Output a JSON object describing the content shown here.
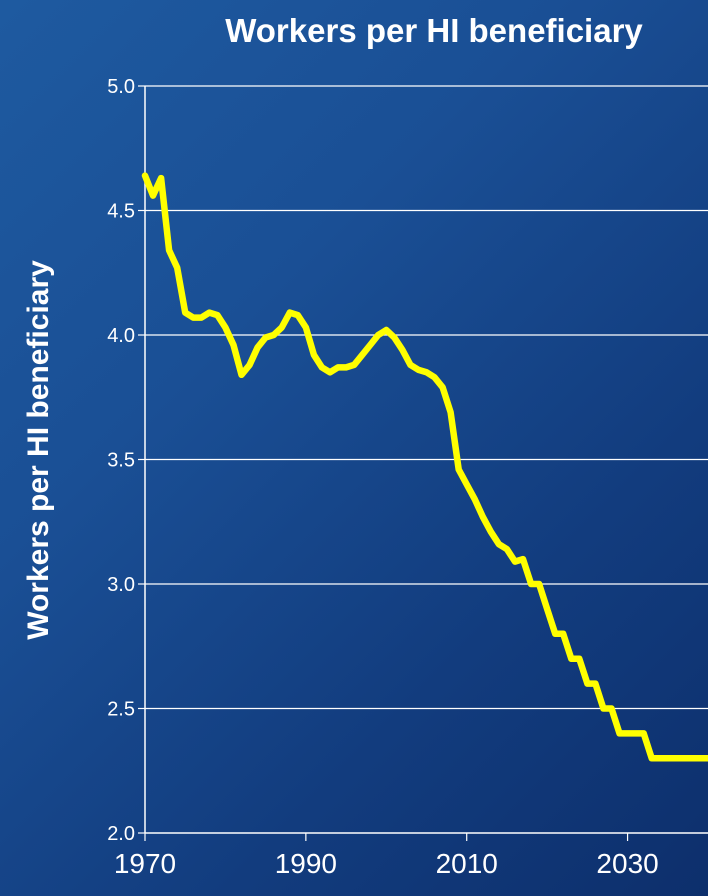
{
  "chart_data": {
    "type": "line",
    "title": "Workers per HI beneficiary",
    "ylabel": "Workers per HI beneficiary",
    "xlabel": "",
    "xlim": [
      1970,
      2040
    ],
    "ylim": [
      2.0,
      5.0
    ],
    "yticks": [
      "2.0",
      "2.5",
      "3.0",
      "3.5",
      "4.0",
      "4.5",
      "5.0"
    ],
    "xticks": [
      "1970",
      "1990",
      "2010",
      "2030"
    ],
    "grid": true,
    "line_color": "#ffff00",
    "series": [
      {
        "x": [
          1970,
          1971,
          1972,
          1973,
          1974,
          1975,
          1976,
          1977,
          1978,
          1979,
          1980,
          1981,
          1982,
          1983,
          1984,
          1985,
          1986,
          1987,
          1988,
          1989,
          1990,
          1991,
          1992,
          1993,
          1994,
          1995,
          1996,
          1997,
          1998,
          1999,
          2000,
          2001,
          2002,
          2003,
          2004,
          2005,
          2006,
          2007,
          2008,
          2009,
          2010,
          2011,
          2012,
          2013,
          2014,
          2015,
          2016,
          2017,
          2018,
          2019,
          2020,
          2021,
          2022,
          2023,
          2024,
          2025,
          2026,
          2027,
          2028,
          2029,
          2030,
          2031,
          2032,
          2033,
          2034,
          2035,
          2036,
          2037,
          2038,
          2039,
          2040
        ],
        "values": [
          4.64,
          4.56,
          4.63,
          4.34,
          4.27,
          4.09,
          4.07,
          4.07,
          4.09,
          4.08,
          4.03,
          3.96,
          3.84,
          3.88,
          3.95,
          3.99,
          4.0,
          4.03,
          4.09,
          4.08,
          4.03,
          3.92,
          3.87,
          3.85,
          3.87,
          3.87,
          3.88,
          3.92,
          3.96,
          4.0,
          4.02,
          3.99,
          3.94,
          3.88,
          3.86,
          3.85,
          3.83,
          3.79,
          3.69,
          3.46,
          3.4,
          3.34,
          3.27,
          3.21,
          3.16,
          3.14,
          3.09,
          3.1,
          3.0,
          3.0,
          2.9,
          2.8,
          2.8,
          2.7,
          2.7,
          2.6,
          2.6,
          2.5,
          2.5,
          2.4,
          2.4,
          2.4,
          2.4,
          2.3,
          2.3,
          2.3,
          2.3,
          2.3,
          2.3,
          2.3,
          2.3
        ]
      }
    ]
  }
}
